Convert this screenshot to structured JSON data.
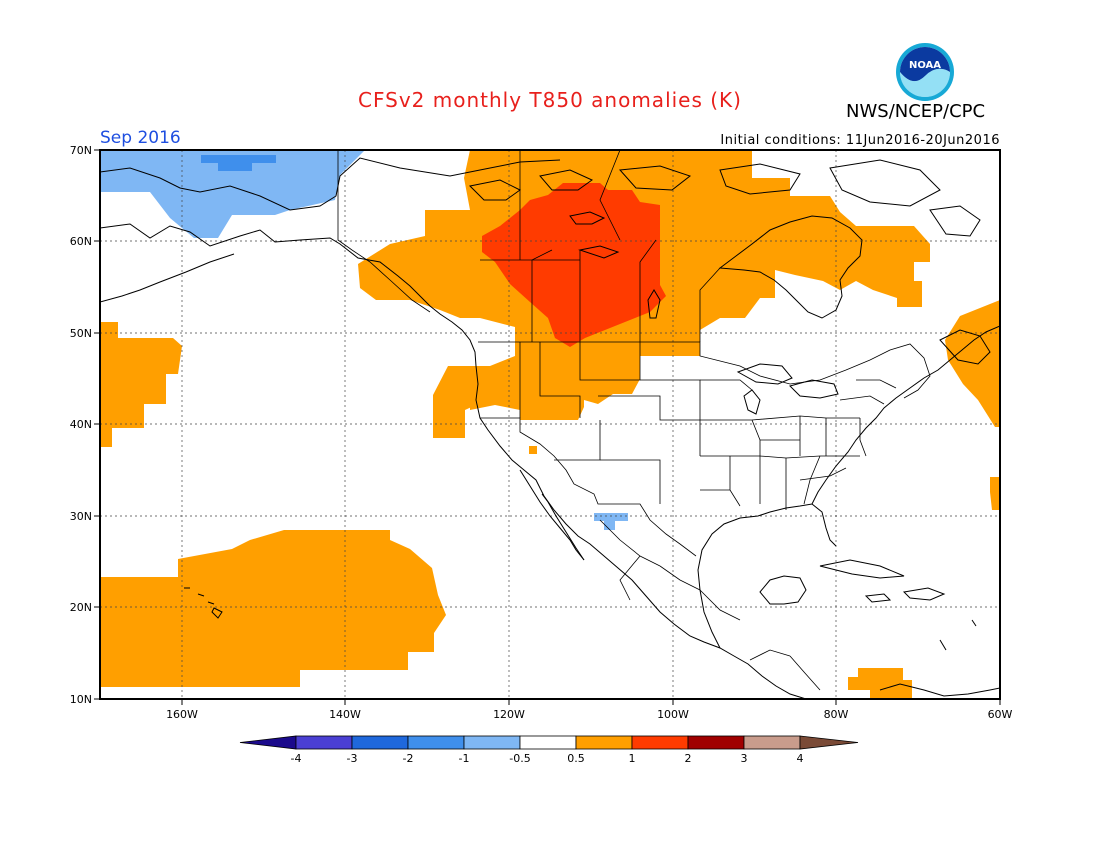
{
  "header": {
    "title": "CFSv2 monthly T850 anomalies (K)",
    "agency": "NWS/NCEP/CPC",
    "logo_text": "NOAA",
    "valid_month": "Sep 2016",
    "initial_conditions": "Initial conditions: 11Jun2016-20Jun2016"
  },
  "map": {
    "lon_range": [
      -170,
      -60
    ],
    "lat_range": [
      10,
      70
    ],
    "lat_ticks": [
      "70N",
      "60N",
      "50N",
      "40N",
      "30N",
      "20N",
      "10N"
    ],
    "lon_ticks": [
      "160W",
      "140W",
      "120W",
      "100W",
      "80W",
      "60W"
    ]
  },
  "colorbar": {
    "labels": [
      "-4",
      "-3",
      "-2",
      "-1",
      "-0.5",
      "0.5",
      "1",
      "2",
      "3",
      "4"
    ],
    "colors": [
      "#1b0a8c",
      "#4a3fd3",
      "#1f68dc",
      "#3f8fec",
      "#7fb7f4",
      "#ffffff",
      "#ff9f00",
      "#ff3b00",
      "#a00000",
      "#c99c8c",
      "#7a4a36"
    ]
  }
}
